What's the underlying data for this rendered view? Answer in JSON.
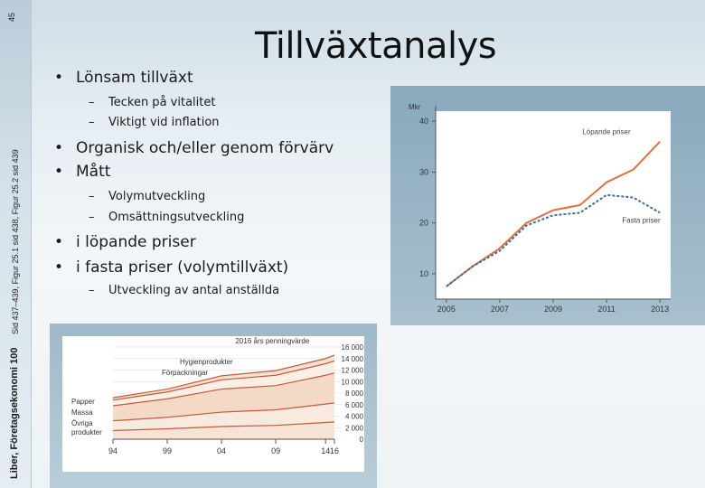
{
  "sidebar": {
    "page_number": "45",
    "reference": "Sid 437–439, Figur 25.1 sid 438, Figur 25.2 sid 439",
    "brand": "Liber, Företagsekonomi 100"
  },
  "slide": {
    "title": "Tillväxtanalys",
    "bullets": [
      {
        "level": 1,
        "text": "Lönsam tillväxt"
      },
      {
        "level": 2,
        "text": "Tecken på vitalitet"
      },
      {
        "level": 2,
        "text": "Viktigt vid inflation"
      },
      {
        "level": 1,
        "text": "Organisk och/eller genom förvärv"
      },
      {
        "level": 1,
        "text": "Mått"
      },
      {
        "level": 2,
        "text": "Volymutveckling"
      },
      {
        "level": 2,
        "text": "Omsättningsutveckling"
      },
      {
        "level": 1,
        "text": "i löpande priser"
      },
      {
        "level": 1,
        "text": "i fasta priser (volymtillväxt)"
      },
      {
        "level": 2,
        "text": "Utveckling av antal anställda"
      }
    ]
  },
  "chart_data": [
    {
      "type": "line",
      "ylabel": "Mkr",
      "x": [
        2005,
        2006,
        2007,
        2008,
        2009,
        2010,
        2011,
        2012,
        2013
      ],
      "x_ticks": [
        "2005",
        "2007",
        "2009",
        "2011",
        "2013"
      ],
      "y_ticks": [
        "10",
        "20",
        "30",
        "40"
      ],
      "ylim": [
        5,
        42
      ],
      "xlim": [
        2004.6,
        2013.4
      ],
      "series": [
        {
          "name": "Löpande priser",
          "style": "solid",
          "color": "#e2703a",
          "values": [
            7.5,
            11.5,
            15,
            20,
            22.5,
            23.5,
            28,
            30.5,
            36
          ]
        },
        {
          "name": "Fasta priser",
          "style": "dashed",
          "color": "#3b6f9a",
          "values": [
            7.5,
            11.5,
            14.5,
            19.5,
            21.5,
            22,
            25.5,
            25,
            22
          ]
        }
      ]
    },
    {
      "type": "area",
      "title": "2016 års penningvärde",
      "x_ticks": [
        "94",
        "99",
        "04",
        "09",
        "14",
        "16"
      ],
      "y_ticks": [
        "0",
        "2 000",
        "4 000",
        "6 000",
        "8 000",
        "10 000",
        "12 000",
        "14 000",
        "16 000"
      ],
      "ylim": [
        0,
        16000
      ],
      "series": [
        {
          "name": "Övriga produkter",
          "values": [
            1500,
            1800,
            2200,
            2400,
            2900,
            3000
          ]
        },
        {
          "name": "Massa",
          "values": [
            1700,
            2000,
            2500,
            2700,
            3200,
            3300
          ]
        },
        {
          "name": "Papper",
          "values": [
            2600,
            3200,
            4000,
            4200,
            5000,
            5200
          ]
        },
        {
          "name": "Förpackningar",
          "values": [
            1000,
            1200,
            1600,
            1800,
            2000,
            2100
          ]
        },
        {
          "name": "Hygienprodukter",
          "values": [
            400,
            500,
            700,
            800,
            900,
            1000
          ]
        }
      ]
    }
  ]
}
